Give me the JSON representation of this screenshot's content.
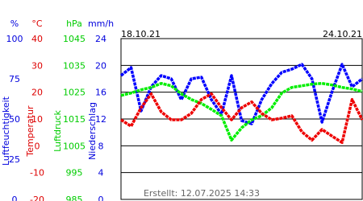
{
  "chart_data": {
    "type": "line",
    "dates": [
      "18.10.21",
      "24.10.21"
    ],
    "footer": "Erstellt: 12.07.2025 14:33",
    "x": [
      0,
      6,
      12,
      18,
      24,
      30,
      36,
      42,
      48,
      54,
      60,
      66,
      72,
      78,
      84,
      90,
      96,
      102,
      108,
      114,
      120,
      126,
      132,
      138,
      144
    ],
    "xlim": [
      0,
      144
    ],
    "grid": true,
    "axes": [
      {
        "unit": "%",
        "label": "Luftfeuchtigkeit",
        "color": "#0000dd",
        "ylim": [
          0,
          100
        ],
        "yticks": [
          0,
          25,
          50,
          75,
          100
        ]
      },
      {
        "unit": "°C",
        "label": "Temperatur",
        "color": "#dd0000",
        "ylim": [
          -20,
          40
        ],
        "yticks": [
          -20,
          -10,
          0,
          10,
          20,
          30,
          40
        ]
      },
      {
        "unit": "hPa",
        "label": "Luftdruck",
        "color": "#00cc00",
        "ylim": [
          985,
          1045
        ],
        "yticks": [
          985,
          995,
          1005,
          1015,
          1025,
          1035,
          1045
        ]
      },
      {
        "unit": "mm/h",
        "label": "Niederschlag",
        "color": "#0000dd",
        "ylim": [
          0,
          24
        ],
        "yticks": [
          0,
          4,
          8,
          12,
          16,
          20,
          24
        ]
      }
    ],
    "series": [
      {
        "axis": 0,
        "color": "#0000ff",
        "values": [
          77,
          82,
          55,
          70,
          77,
          75,
          62,
          75,
          76,
          62,
          53,
          77,
          49,
          47,
          62,
          72,
          79,
          81,
          84,
          75,
          48,
          67,
          84,
          70,
          75
        ]
      },
      {
        "axis": 2,
        "color": "#00ee00",
        "values": [
          1023.8,
          1024.7,
          1025.9,
          1026.8,
          1028.3,
          1027.4,
          1024.4,
          1022.3,
          1020.8,
          1018.6,
          1016.2,
          1007.1,
          1011.7,
          1014.7,
          1016.2,
          1019.2,
          1024.7,
          1026.8,
          1027.4,
          1028.0,
          1028.3,
          1027.7,
          1026.8,
          1026.2,
          1025.3
        ]
      },
      {
        "axis": 1,
        "color": "#ee0000",
        "values": [
          9.7,
          7.3,
          14.2,
          19.4,
          12.7,
          9.7,
          9.7,
          12.1,
          17.3,
          19.4,
          14.2,
          9.7,
          14.2,
          16.4,
          12.1,
          9.7,
          10.3,
          11.2,
          5.2,
          2.1,
          6.1,
          3.6,
          1.2,
          17.3,
          9.7
        ]
      }
    ]
  }
}
